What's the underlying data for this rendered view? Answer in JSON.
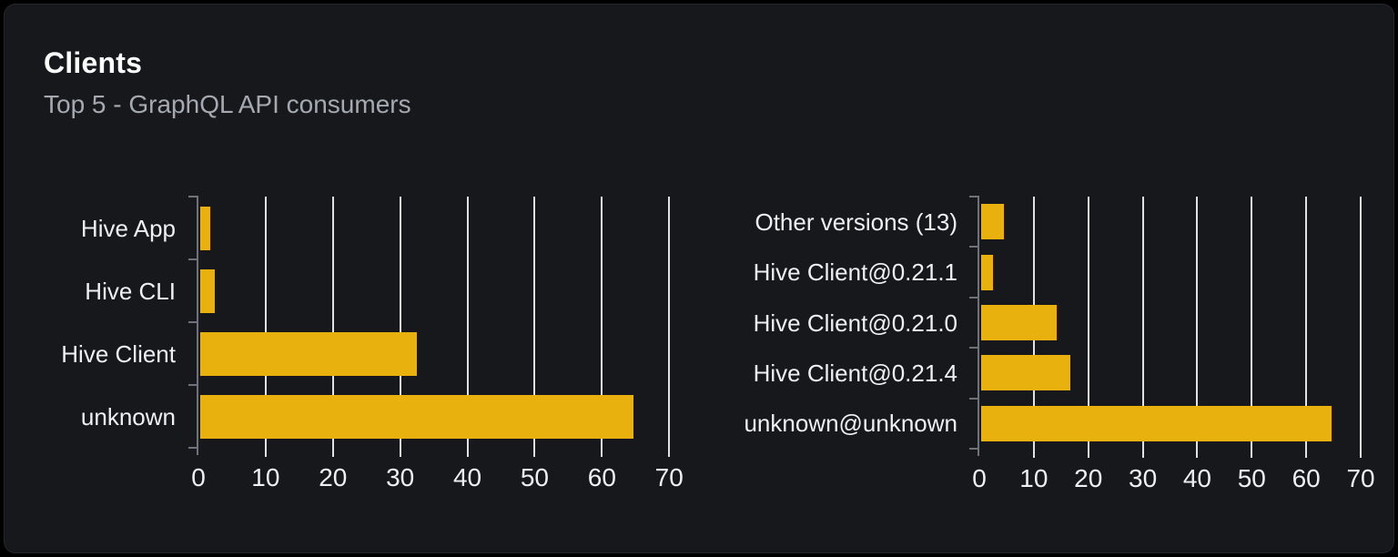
{
  "panel": {
    "title": "Clients",
    "subtitle": "Top 5 - GraphQL API consumers"
  },
  "colors": {
    "page_bg": "#000000",
    "card_bg": "#16181c",
    "card_border": "#23262b",
    "bar": "#e9b10d",
    "gridline": "#dfe2e8",
    "axis": "#6e737b",
    "label_text": "#eef0f2",
    "title_text": "#ffffff",
    "subtitle_text": "#a5aab2"
  },
  "chart_data": [
    {
      "type": "bar",
      "orientation": "horizontal",
      "title": "GraphQL API consumers by client name",
      "categories": [
        "Hive App",
        "Hive CLI",
        "Hive Client",
        "unknown"
      ],
      "values": [
        1.5,
        2.2,
        32.2,
        64.4
      ],
      "x_ticks": [
        0,
        10,
        20,
        30,
        40,
        50,
        60,
        70
      ],
      "xlim": [
        0,
        72
      ],
      "grid": true,
      "legend": false
    },
    {
      "type": "bar",
      "orientation": "horizontal",
      "title": "GraphQL API consumers by client version",
      "categories": [
        "Other versions (13)",
        "Hive Client@0.21.1",
        "Hive Client@0.21.0",
        "Hive Client@0.21.4",
        "unknown@unknown"
      ],
      "values": [
        4.2,
        2.1,
        13.9,
        16.4,
        64.3
      ],
      "x_ticks": [
        0,
        10,
        20,
        30,
        40,
        50,
        60,
        70
      ],
      "xlim": [
        0,
        72
      ],
      "grid": true,
      "legend": false
    }
  ]
}
